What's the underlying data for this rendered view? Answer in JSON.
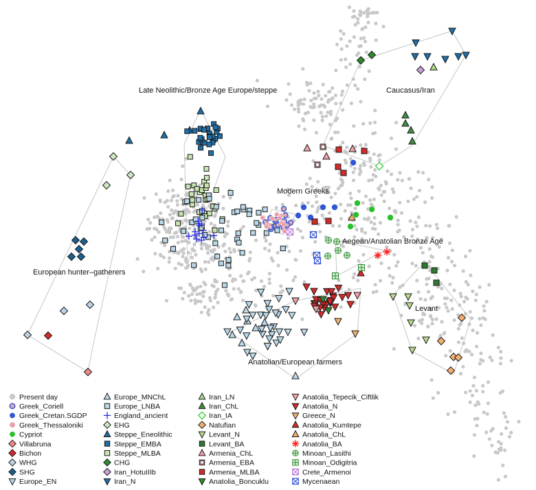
{
  "chart_data": {
    "type": "scatter",
    "title": "",
    "xlabel": "",
    "ylabel": "",
    "legend_position": "bottom-left",
    "region_labels": [
      {
        "text": "Late Neolithic/Bronze Age Europe/steppe"
      },
      {
        "text": "Caucasus/Iran"
      },
      {
        "text": "Modern Greeks"
      },
      {
        "text": "Aegean/Anatolian Bronze Age"
      },
      {
        "text": "European hunter–gatherers"
      },
      {
        "text": "Levant"
      },
      {
        "text": "Anatolian/European farmers"
      }
    ],
    "series": [
      {
        "name": "Present day",
        "marker": "circle",
        "color": "#c8c8c8"
      },
      {
        "name": "Greek_Coriell",
        "marker": "circle-open",
        "color": "#3a5fd9"
      },
      {
        "name": "Greek_Cretan.SGDP",
        "marker": "circle",
        "color": "#2f56d6"
      },
      {
        "name": "Greek_Thessaloniki",
        "marker": "circle",
        "color": "#e9a0a8"
      },
      {
        "name": "Cypriot",
        "marker": "circle",
        "color": "#2bbf2b"
      },
      {
        "name": "Villabruna",
        "marker": "diamond",
        "color": "#ee8a8a"
      },
      {
        "name": "Bichon",
        "marker": "diamond",
        "color": "#d42a2a"
      },
      {
        "name": "WHG",
        "marker": "diamond",
        "color": "#bcd3e8"
      },
      {
        "name": "SHG",
        "marker": "diamond",
        "color": "#1b5f8f"
      },
      {
        "name": "Europe_EN",
        "marker": "tri-down",
        "color": "#b9d8e8"
      },
      {
        "name": "Europe_MNChL",
        "marker": "tri-up",
        "color": "#b9d8e8"
      },
      {
        "name": "Europe_LNBA",
        "marker": "square",
        "color": "#b9d8e8"
      },
      {
        "name": "England_ancient",
        "marker": "plus",
        "color": "#2a2ae0"
      },
      {
        "name": "EHG",
        "marker": "diamond",
        "color": "#cde6c0"
      },
      {
        "name": "Steppe_Eneolithic",
        "marker": "tri-up",
        "color": "#1f6ea8"
      },
      {
        "name": "Steppe_EMBA",
        "marker": "square",
        "color": "#1f6ea8"
      },
      {
        "name": "Steppe_MLBA",
        "marker": "square",
        "color": "#c8e6b0"
      },
      {
        "name": "CHG",
        "marker": "diamond",
        "color": "#2e8a2e"
      },
      {
        "name": "Iran_HotuIIIb",
        "marker": "diamond",
        "color": "#c9a3d6"
      },
      {
        "name": "Iran_N",
        "marker": "tri-down",
        "color": "#1f6ea8"
      },
      {
        "name": "Iran_LN",
        "marker": "tri-up",
        "color": "#a9d88a"
      },
      {
        "name": "Iran_ChL",
        "marker": "tri-up",
        "color": "#3f8f3f"
      },
      {
        "name": "Iran_IA",
        "marker": "diamond-open",
        "color": "#3fd23f"
      },
      {
        "name": "Natufian",
        "marker": "diamond",
        "color": "#f2b070"
      },
      {
        "name": "Levant_N",
        "marker": "tri-down",
        "color": "#b9d98f"
      },
      {
        "name": "Levant_BA",
        "marker": "square",
        "color": "#2e7a2e"
      },
      {
        "name": "Armenia_ChL",
        "marker": "tri-up",
        "color": "#f0a0a8"
      },
      {
        "name": "Armenia_EBA",
        "marker": "square-inner",
        "color": "#f0a0a8"
      },
      {
        "name": "Armenia_MLBA",
        "marker": "square",
        "color": "#d42a2a"
      },
      {
        "name": "Anatolia_Boncuklu",
        "marker": "tri-down",
        "color": "#2e8a2e"
      },
      {
        "name": "Anatolia_Tepecik_Ciftlik",
        "marker": "tri-down",
        "color": "#f3a3a8"
      },
      {
        "name": "Anatolia_N",
        "marker": "tri-down",
        "color": "#d42a2a"
      },
      {
        "name": "Greece_N",
        "marker": "tri-down",
        "color": "#f2b070"
      },
      {
        "name": "Anatolia_Kumtepe",
        "marker": "tri-up",
        "color": "#d42a2a"
      },
      {
        "name": "Anatolia_ChL",
        "marker": "tri-up",
        "color": "#f2b070"
      },
      {
        "name": "Anatolia_BA",
        "marker": "asterisk",
        "color": "#ff2020"
      },
      {
        "name": "Minoan_Lasithi",
        "marker": "circle-plus",
        "color": "#2e8a2e"
      },
      {
        "name": "Minoan_Odigitria",
        "marker": "square-plus",
        "color": "#2e8a2e"
      },
      {
        "name": "Crete_Armenoi",
        "marker": "square-x",
        "color": "#b36bd6"
      },
      {
        "name": "Mycenaean",
        "marker": "square-x",
        "color": "#2a4ed6"
      }
    ]
  }
}
